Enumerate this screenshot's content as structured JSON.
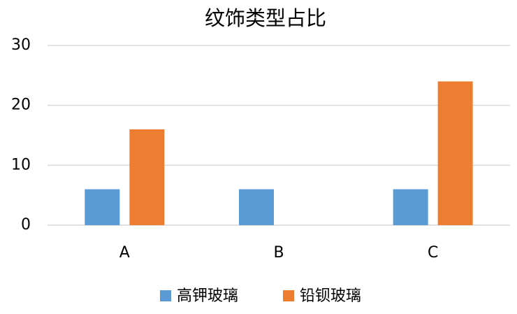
{
  "chart_data": {
    "type": "bar",
    "title": "纹饰类型占比",
    "categories": [
      "A",
      "B",
      "C"
    ],
    "series": [
      {
        "name": "高钾玻璃",
        "color": "#5b9bd5",
        "values": [
          6,
          6,
          6
        ]
      },
      {
        "name": "铅钡玻璃",
        "color": "#ed7d31",
        "values": [
          16,
          0,
          24
        ]
      }
    ],
    "ylim": [
      0,
      30
    ],
    "yticks": [
      0,
      10,
      20,
      30
    ],
    "grid": true,
    "legend": "bottom"
  }
}
